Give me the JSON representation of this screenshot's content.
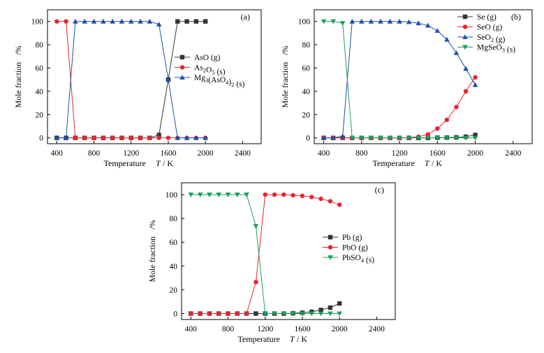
{
  "chart_data": [
    {
      "type": "line",
      "panel_label": "(a)",
      "xlabel": "Temperature",
      "xlabel_italic": "T",
      "xlabel_unit": "/ K",
      "ylabel": "Mole fraction",
      "ylabel_unit": "/%",
      "xlim": [
        300,
        2600
      ],
      "ylim": [
        -5,
        110
      ],
      "xticks": [
        400,
        800,
        1200,
        1600,
        2000,
        2400
      ],
      "yticks": [
        0,
        20,
        40,
        60,
        80,
        100
      ],
      "legend_position": "right-middle",
      "x": [
        400,
        500,
        600,
        700,
        800,
        900,
        1000,
        1100,
        1200,
        1300,
        1400,
        1500,
        1600,
        1700,
        1800,
        1900,
        2000
      ],
      "series": [
        {
          "name": "AsO (g)",
          "color": "#333333",
          "marker": "square",
          "values": [
            0,
            0,
            0,
            0,
            0,
            0,
            0,
            0,
            0,
            0,
            0,
            2.5,
            50,
            100,
            100,
            100,
            100
          ]
        },
        {
          "name": "As2O5 (s)",
          "color": "#e8232f",
          "marker": "circle",
          "values": [
            100,
            100,
            0,
            0,
            0,
            0,
            0,
            0,
            0,
            0,
            0,
            0,
            0,
            0,
            0,
            0,
            0
          ]
        },
        {
          "name": "Mg3(AsO4)2 (s)",
          "color": "#1f4fa8",
          "marker": "triangle-up",
          "values": [
            0,
            0,
            100,
            100,
            100,
            100,
            100,
            100,
            100,
            100,
            100,
            97.5,
            50,
            0,
            0,
            0,
            0
          ]
        }
      ]
    },
    {
      "type": "line",
      "panel_label": "(b)",
      "xlabel": "Temperature",
      "xlabel_italic": "T",
      "xlabel_unit": "/ K",
      "ylabel": "Mole fraction",
      "ylabel_unit": "/%",
      "xlim": [
        300,
        2600
      ],
      "ylim": [
        -5,
        110
      ],
      "xticks": [
        400,
        800,
        1200,
        1600,
        2000,
        2400
      ],
      "yticks": [
        0,
        20,
        40,
        60,
        80,
        100
      ],
      "legend_position": "top-right",
      "x": [
        400,
        500,
        600,
        700,
        800,
        900,
        1000,
        1100,
        1200,
        1300,
        1400,
        1500,
        1600,
        1700,
        1800,
        1900,
        2000
      ],
      "series": [
        {
          "name": "Se (g)",
          "color": "#333333",
          "marker": "square",
          "values": [
            0,
            0,
            0,
            0,
            0,
            0,
            0,
            0,
            0,
            0,
            0,
            0,
            0.2,
            0.3,
            0.5,
            1,
            2.5
          ]
        },
        {
          "name": "SeO (g)",
          "color": "#e8232f",
          "marker": "circle",
          "values": [
            0,
            0,
            0,
            0,
            0,
            0,
            0,
            0,
            0,
            0.3,
            1,
            3,
            8,
            15.5,
            26.5,
            40,
            52
          ]
        },
        {
          "name": "SeO2 (g)",
          "color": "#1f4fa8",
          "marker": "triangle-up",
          "values": [
            0,
            0,
            1.5,
            100,
            100,
            100,
            100,
            100,
            100,
            99.5,
            98.5,
            96.5,
            92,
            84.5,
            73,
            59.5,
            45.5
          ]
        },
        {
          "name": "MgSeO3 (s)",
          "color": "#17a05e",
          "marker": "triangle-down",
          "values": [
            100,
            100,
            98.5,
            0,
            0,
            0,
            0,
            0,
            0,
            0,
            0,
            0,
            0,
            0,
            0,
            0,
            0
          ]
        }
      ]
    },
    {
      "type": "line",
      "panel_label": "(c)",
      "xlabel": "Temperature",
      "xlabel_italic": "T",
      "xlabel_unit": "/ K",
      "ylabel": "Mole fraction",
      "ylabel_unit": "/%",
      "xlim": [
        300,
        2600
      ],
      "ylim": [
        -5,
        110
      ],
      "xticks": [
        400,
        800,
        1200,
        1600,
        2000,
        2400
      ],
      "yticks": [
        0,
        20,
        40,
        60,
        80,
        100
      ],
      "legend_position": "right-middle",
      "x": [
        400,
        500,
        600,
        700,
        800,
        900,
        1000,
        1100,
        1200,
        1300,
        1400,
        1500,
        1600,
        1700,
        1800,
        1900,
        2000
      ],
      "series": [
        {
          "name": "Pb (g)",
          "color": "#333333",
          "marker": "square",
          "values": [
            0,
            0,
            0,
            0,
            0,
            0,
            0,
            0,
            0,
            0,
            0,
            0.3,
            0.7,
            1.5,
            3,
            5,
            8.5
          ]
        },
        {
          "name": "PbO (g)",
          "color": "#e8232f",
          "marker": "circle",
          "values": [
            0,
            0,
            0,
            0,
            0,
            0,
            0,
            26.5,
            100,
            100,
            100,
            99.5,
            99,
            98,
            96.5,
            94.5,
            91.5
          ]
        },
        {
          "name": "PbSO4 (s)",
          "color": "#17a05e",
          "marker": "triangle-down",
          "values": [
            100,
            100,
            100,
            100,
            100,
            100,
            100,
            73.5,
            0,
            0,
            0,
            0,
            0,
            0,
            0,
            0,
            0
          ]
        }
      ]
    }
  ]
}
